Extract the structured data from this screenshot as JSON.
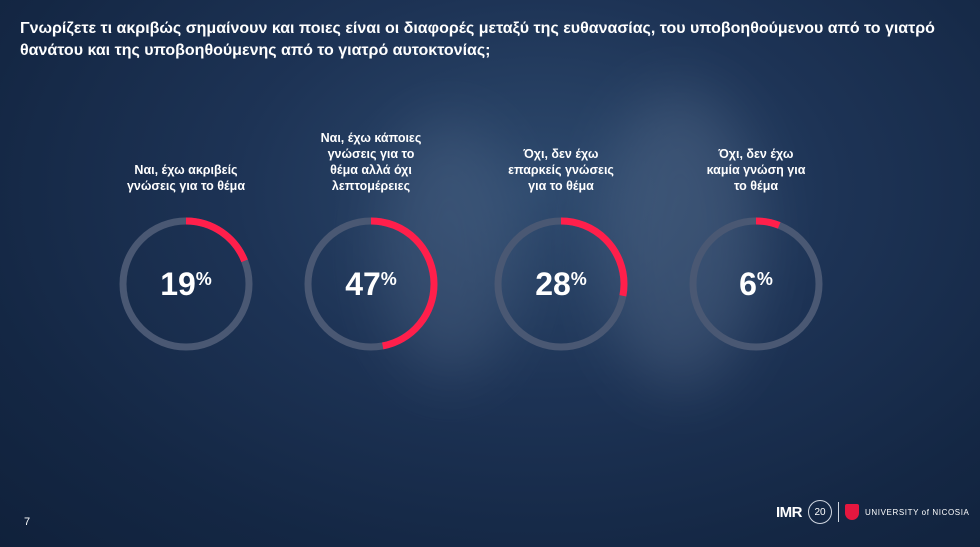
{
  "title": "Γνωρίζετε τι ακριβώς σημαίνουν και ποιες είναι οι διαφορές μεταξύ της ευθανασίας, του υποβοηθούμενου από το γιατρό θανάτου και της υποβοηθούμενης από το γιατρό αυτοκτονίας;",
  "page_number": "7",
  "logos": {
    "imr": "IMR",
    "anniversary": "20",
    "university": "UNIVERSITY of NICOSIA"
  },
  "colors": {
    "accent": "#ff1f4b",
    "track": "#4a5873"
  },
  "chart_data": {
    "type": "donut",
    "unit": "%",
    "categories": [
      "Ναι, έχω ακριβείς γνώσεις για το θέμα",
      "Ναι, έχω κάποιες γνώσεις για το θέμα αλλά όχι λεπτομέρειες",
      "Όχι, δεν έχω επαρκείς γνώσεις για το θέμα",
      "Όχι, δεν έχω καμία γνώση για το θέμα"
    ],
    "label_lines": [
      [
        "Ναι, έχω ακριβείς",
        "γνώσεις για το θέμα"
      ],
      [
        "Ναι, έχω κάποιες",
        "γνώσεις για το",
        "θέμα αλλά όχι",
        "λεπτομέρειες"
      ],
      [
        "Όχι, δεν έχω",
        "επαρκείς γνώσεις",
        "για το θέμα"
      ],
      [
        "Όχι, δεν έχω",
        "καμία γνώση για",
        "το θέμα"
      ]
    ],
    "values": [
      19,
      47,
      28,
      6
    ]
  }
}
